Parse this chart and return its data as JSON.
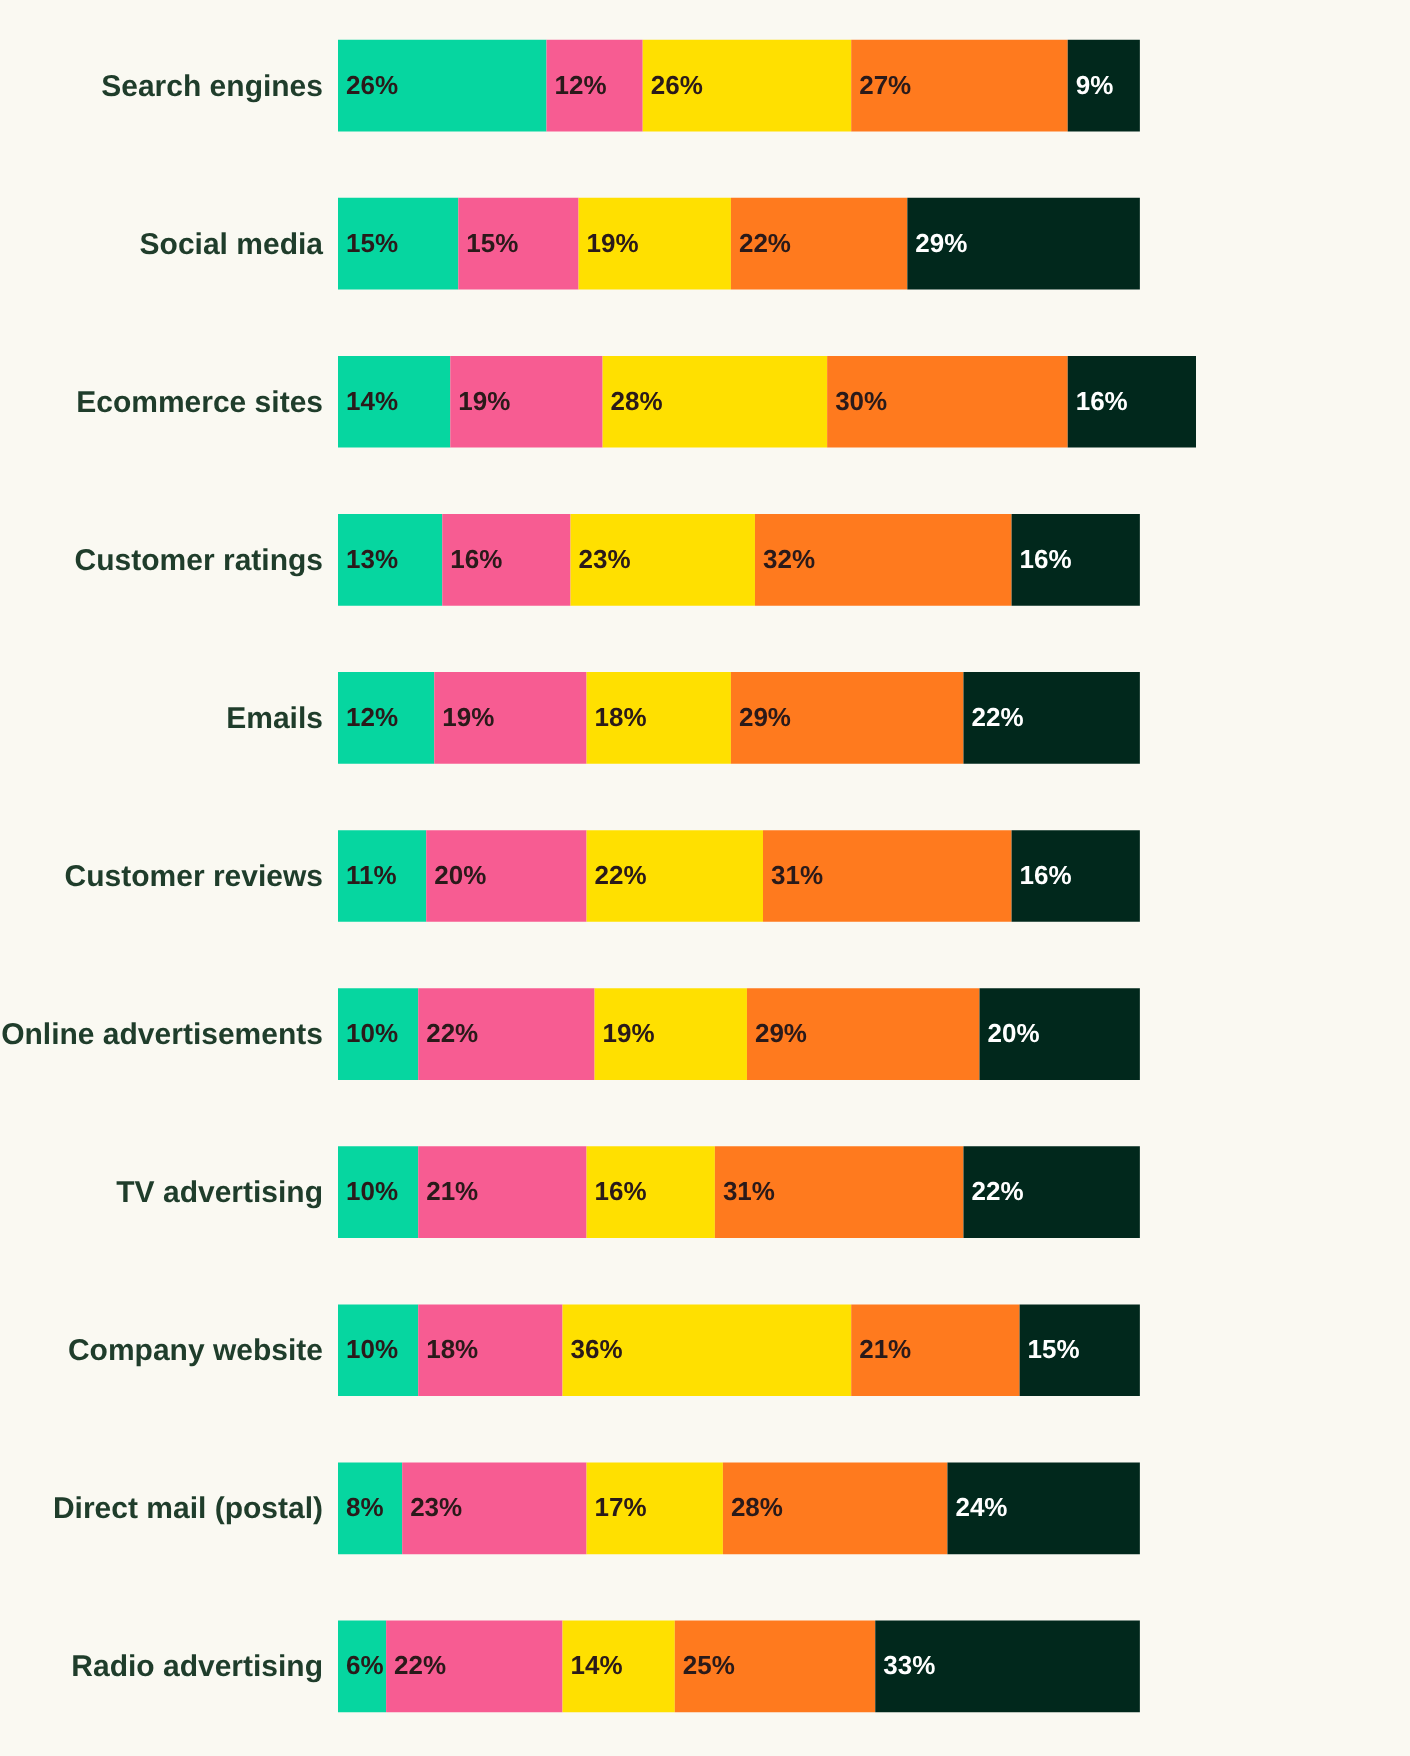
{
  "chart_data": {
    "type": "bar",
    "orientation": "horizontal",
    "stacked": true,
    "xlim": [
      0,
      107
    ],
    "tick_labels": "y",
    "legend": false,
    "categories": [
      "Search engines",
      "Social media",
      "Ecommerce sites",
      "Customer ratings",
      "Emails",
      "Customer reviews",
      "Online advertisements",
      "TV advertising",
      "Company website",
      "Direct mail (postal)",
      "Radio advertising"
    ],
    "series": [
      {
        "color": "#06d6a0",
        "values": [
          26,
          15,
          14,
          13,
          12,
          11,
          10,
          10,
          10,
          8,
          6
        ],
        "value_labels": [
          "26%",
          "15%",
          "14%",
          "13%",
          "12%",
          "11%",
          "10%",
          "10%",
          "10%",
          "8%",
          "6%"
        ]
      },
      {
        "color": "#f75c92",
        "values": [
          12,
          15,
          19,
          16,
          19,
          20,
          22,
          21,
          18,
          23,
          22
        ],
        "value_labels": [
          "12%",
          "15%",
          "19%",
          "16%",
          "19%",
          "20%",
          "22%",
          "21%",
          "18%",
          "23%",
          "22%"
        ]
      },
      {
        "color": "#ffe000",
        "values": [
          26,
          19,
          28,
          23,
          18,
          22,
          19,
          16,
          36,
          17,
          14
        ],
        "value_labels": [
          "26%",
          "19%",
          "28%",
          "23%",
          "18%",
          "22%",
          "19%",
          "16%",
          "36%",
          "17%",
          "14%"
        ]
      },
      {
        "color": "#ff7a1e",
        "values": [
          27,
          22,
          30,
          32,
          29,
          31,
          29,
          31,
          21,
          28,
          25
        ],
        "value_labels": [
          "27%",
          "22%",
          "30%",
          "32%",
          "29%",
          "31%",
          "29%",
          "31%",
          "21%",
          "28%",
          "25%"
        ]
      },
      {
        "color": "#01281c",
        "values": [
          9,
          29,
          16,
          16,
          22,
          16,
          20,
          22,
          15,
          24,
          33
        ],
        "value_labels": [
          "9%",
          "29%",
          "16%",
          "16%",
          "22%",
          "16%",
          "20%",
          "22%",
          "15%",
          "24%",
          "33%"
        ]
      }
    ]
  }
}
